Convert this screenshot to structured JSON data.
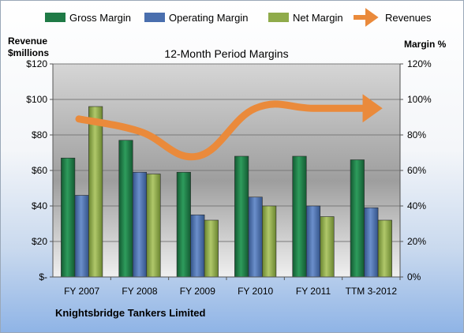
{
  "chart_data": {
    "type": "bar",
    "title": "12-Month Period Margins",
    "company": "Knightsbridge Tankers Limited",
    "left_axis_title": [
      "Revenue",
      "$millions"
    ],
    "right_axis_title": "Margin %",
    "left_ticks": [
      "$120",
      "$100",
      "$80",
      "$60",
      "$40",
      "$20",
      "$-"
    ],
    "right_ticks": [
      "120%",
      "100%",
      "80%",
      "60%",
      "40%",
      "20%",
      "0%"
    ],
    "left_ylim": [
      0,
      120
    ],
    "right_ylim": [
      0,
      120
    ],
    "grid": true,
    "legend_position": "top",
    "categories": [
      "FY 2007",
      "FY 2008",
      "FY 2009",
      "FY 2010",
      "FY 2011",
      "TTM 3-2012"
    ],
    "series": [
      {
        "name": "Gross Margin",
        "kind": "bar",
        "axis": "right",
        "color": "#1f7a46",
        "values": [
          67,
          77,
          59,
          68,
          68,
          66
        ]
      },
      {
        "name": "Operating Margin",
        "kind": "bar",
        "axis": "right",
        "color": "#4a6fae",
        "values": [
          46,
          59,
          35,
          45,
          40,
          39
        ]
      },
      {
        "name": "Net Margin",
        "kind": "bar",
        "axis": "right",
        "color": "#8fab4a",
        "values": [
          96,
          58,
          32,
          40,
          34,
          32
        ]
      },
      {
        "name": "Revenues",
        "kind": "line",
        "axis": "left",
        "color": "#ea8a3b",
        "values": [
          89,
          82,
          68,
          95,
          95,
          95
        ]
      }
    ]
  }
}
